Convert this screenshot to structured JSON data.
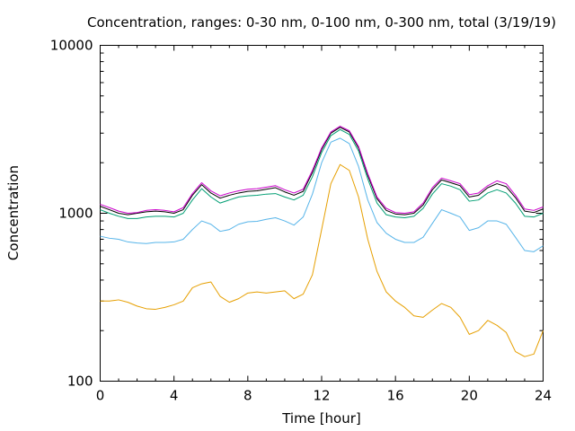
{
  "chart_data": {
    "type": "line",
    "title": "Concentration, ranges: 0-30 nm, 0-100 nm, 0-300 nm, total (3/19/19)",
    "xlabel": "Time [hour]",
    "ylabel": "Concentration",
    "xlim": [
      0,
      24
    ],
    "ylim": [
      100,
      10000
    ],
    "yscale": "log",
    "grid": false,
    "x_ticks": [
      0,
      4,
      8,
      12,
      16,
      20,
      24
    ],
    "x_tick_labels": [
      "0",
      "4",
      "8",
      "12",
      "16",
      "20",
      "24"
    ],
    "y_ticks": [
      100,
      1000,
      10000
    ],
    "y_tick_labels": [
      "100",
      "1000",
      "10000"
    ],
    "x": [
      0,
      0.5,
      1,
      1.5,
      2,
      2.5,
      3,
      3.5,
      4,
      4.5,
      5,
      5.5,
      6,
      6.5,
      7,
      7.5,
      8,
      8.5,
      9,
      9.5,
      10,
      10.5,
      11,
      11.5,
      12,
      12.5,
      13,
      13.5,
      14,
      14.5,
      15,
      15.5,
      16,
      16.5,
      17,
      17.5,
      18,
      18.5,
      19,
      19.5,
      20,
      20.5,
      21,
      21.5,
      22,
      22.5,
      23,
      23.5,
      24
    ],
    "series": [
      {
        "color": "#e69f00",
        "values": [
          300,
          300,
          305,
          295,
          280,
          270,
          268,
          275,
          285,
          300,
          360,
          380,
          390,
          320,
          295,
          310,
          335,
          340,
          335,
          340,
          345,
          310,
          330,
          430,
          800,
          1500,
          1950,
          1800,
          1250,
          700,
          450,
          340,
          300,
          275,
          245,
          240,
          265,
          290,
          275,
          240,
          190,
          200,
          230,
          215,
          195,
          150,
          140,
          145,
          200
        ]
      },
      {
        "color": "#56b4e9",
        "values": [
          730,
          710,
          700,
          675,
          665,
          660,
          670,
          670,
          675,
          700,
          800,
          900,
          860,
          780,
          800,
          860,
          890,
          895,
          920,
          940,
          900,
          850,
          950,
          1300,
          2000,
          2650,
          2800,
          2600,
          1900,
          1200,
          880,
          760,
          700,
          670,
          670,
          720,
          870,
          1050,
          1000,
          950,
          790,
          820,
          900,
          900,
          860,
          720,
          600,
          590,
          640
        ]
      },
      {
        "color": "#009e73",
        "values": [
          1050,
          1000,
          960,
          930,
          930,
          950,
          960,
          960,
          950,
          1000,
          1200,
          1400,
          1250,
          1150,
          1200,
          1250,
          1270,
          1280,
          1300,
          1310,
          1250,
          1200,
          1280,
          1650,
          2300,
          2900,
          3150,
          2950,
          2350,
          1600,
          1150,
          980,
          950,
          940,
          960,
          1070,
          1300,
          1500,
          1450,
          1380,
          1180,
          1200,
          1320,
          1380,
          1320,
          1150,
          960,
          950,
          1000
        ]
      },
      {
        "color": "#000000",
        "values": [
          1100,
          1050,
          1000,
          980,
          1000,
          1020,
          1030,
          1020,
          1000,
          1050,
          1280,
          1480,
          1320,
          1230,
          1280,
          1320,
          1350,
          1360,
          1390,
          1420,
          1340,
          1280,
          1350,
          1750,
          2400,
          3000,
          3250,
          3050,
          2450,
          1680,
          1220,
          1040,
          990,
          980,
          1000,
          1120,
          1380,
          1580,
          1520,
          1460,
          1250,
          1280,
          1420,
          1500,
          1440,
          1240,
          1030,
          1010,
          1060
        ]
      },
      {
        "color": "#cc00cc",
        "values": [
          1130,
          1080,
          1030,
          1000,
          1010,
          1040,
          1050,
          1040,
          1020,
          1080,
          1310,
          1520,
          1360,
          1270,
          1320,
          1360,
          1390,
          1400,
          1430,
          1460,
          1380,
          1320,
          1390,
          1800,
          2450,
          3050,
          3300,
          3100,
          2500,
          1720,
          1250,
          1070,
          1010,
          1000,
          1020,
          1150,
          1420,
          1620,
          1560,
          1500,
          1290,
          1320,
          1460,
          1560,
          1500,
          1280,
          1060,
          1040,
          1090
        ]
      }
    ]
  }
}
